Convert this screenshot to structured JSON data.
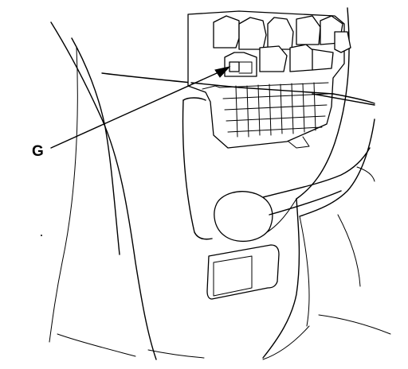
{
  "diagram": {
    "callouts": [
      {
        "id": "G",
        "label": "G"
      }
    ],
    "colors": {
      "line": "#000000",
      "background": "#ffffff"
    }
  }
}
